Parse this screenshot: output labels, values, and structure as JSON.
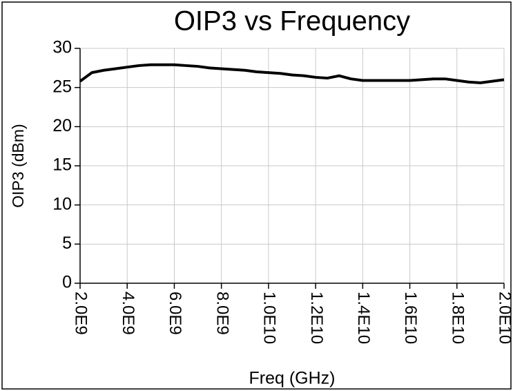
{
  "chart_data": {
    "type": "line",
    "title": "OIP3 vs Frequency",
    "xlabel": "Freq (GHz)",
    "ylabel": "OIP3 (dBm)",
    "x": [
      2000000000,
      2500000000,
      3000000000,
      3500000000,
      4000000000,
      4500000000,
      5000000000,
      5500000000,
      6000000000,
      6500000000,
      7000000000,
      7500000000,
      8000000000,
      8500000000,
      9000000000,
      9500000000,
      10000000000,
      10500000000,
      11000000000,
      11500000000,
      12000000000,
      12500000000,
      13000000000,
      13500000000,
      14000000000,
      14500000000,
      15000000000,
      15500000000,
      16000000000,
      16500000000,
      17000000000,
      17500000000,
      18000000000,
      18500000000,
      19000000000,
      19500000000,
      20000000000
    ],
    "series": [
      {
        "name": "OIP3",
        "color": "#000000",
        "values": [
          25.8,
          26.9,
          27.2,
          27.4,
          27.6,
          27.8,
          27.9,
          27.9,
          27.9,
          27.8,
          27.7,
          27.5,
          27.4,
          27.3,
          27.2,
          27.0,
          26.9,
          26.8,
          26.6,
          26.5,
          26.3,
          26.2,
          26.5,
          26.1,
          25.9,
          25.9,
          25.9,
          25.9,
          25.9,
          26.0,
          26.1,
          26.1,
          25.9,
          25.7,
          25.6,
          25.8,
          26.0
        ]
      }
    ],
    "xlim": [
      2000000000,
      20000000000
    ],
    "xticks": [
      {
        "value": 2000000000,
        "label": "2.0E9"
      },
      {
        "value": 4000000000,
        "label": "4.0E9"
      },
      {
        "value": 6000000000,
        "label": "6.0E9"
      },
      {
        "value": 8000000000,
        "label": "8.0E9"
      },
      {
        "value": 10000000000,
        "label": "1.0E10"
      },
      {
        "value": 12000000000,
        "label": "1.2E10"
      },
      {
        "value": 14000000000,
        "label": "1.4E10"
      },
      {
        "value": 16000000000,
        "label": "1.6E10"
      },
      {
        "value": 18000000000,
        "label": "1.8E10"
      },
      {
        "value": 20000000000,
        "label": "2.0E10"
      }
    ],
    "ylim": [
      0,
      30
    ],
    "yticks": [
      0,
      5,
      10,
      15,
      20,
      25,
      30
    ],
    "grid": true
  }
}
